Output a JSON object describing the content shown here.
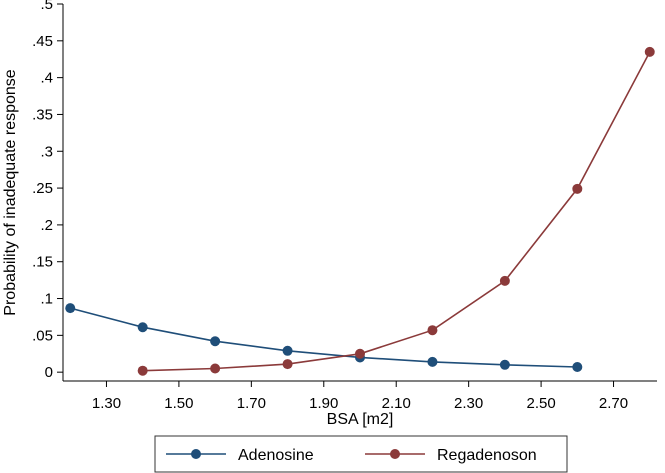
{
  "chart_data": {
    "type": "line",
    "xlabel": "BSA [m2]",
    "ylabel": "Probability of inadequate response",
    "xlim": [
      1.18,
      2.82
    ],
    "ylim": [
      -0.012,
      0.5
    ],
    "x_ticks": [
      1.3,
      1.5,
      1.7,
      1.9,
      2.1,
      2.3,
      2.5,
      2.7
    ],
    "x_tick_labels": [
      "1.30",
      "1.50",
      "1.70",
      "1.90",
      "2.10",
      "2.30",
      "2.50",
      "2.70"
    ],
    "y_ticks": [
      0,
      0.05,
      0.1,
      0.15,
      0.2,
      0.25,
      0.3,
      0.35,
      0.4,
      0.45,
      0.5
    ],
    "y_tick_labels": [
      "0",
      ".05",
      ".1",
      ".15",
      ".2",
      ".25",
      ".3",
      ".35",
      ".4",
      ".45",
      ".5"
    ],
    "grid": false,
    "legend_position": "bottom",
    "series": [
      {
        "name": "Adenosine",
        "color": "#1f4e79",
        "x": [
          1.2,
          1.4,
          1.6,
          1.8,
          2.0,
          2.2,
          2.4,
          2.6
        ],
        "values": [
          0.087,
          0.061,
          0.042,
          0.029,
          0.02,
          0.014,
          0.01,
          0.007
        ]
      },
      {
        "name": "Regadenoson",
        "color": "#8b3a3a",
        "x": [
          1.4,
          1.6,
          1.8,
          2.0,
          2.2,
          2.4,
          2.6,
          2.8
        ],
        "values": [
          0.002,
          0.005,
          0.011,
          0.025,
          0.057,
          0.124,
          0.249,
          0.435
        ]
      }
    ]
  }
}
